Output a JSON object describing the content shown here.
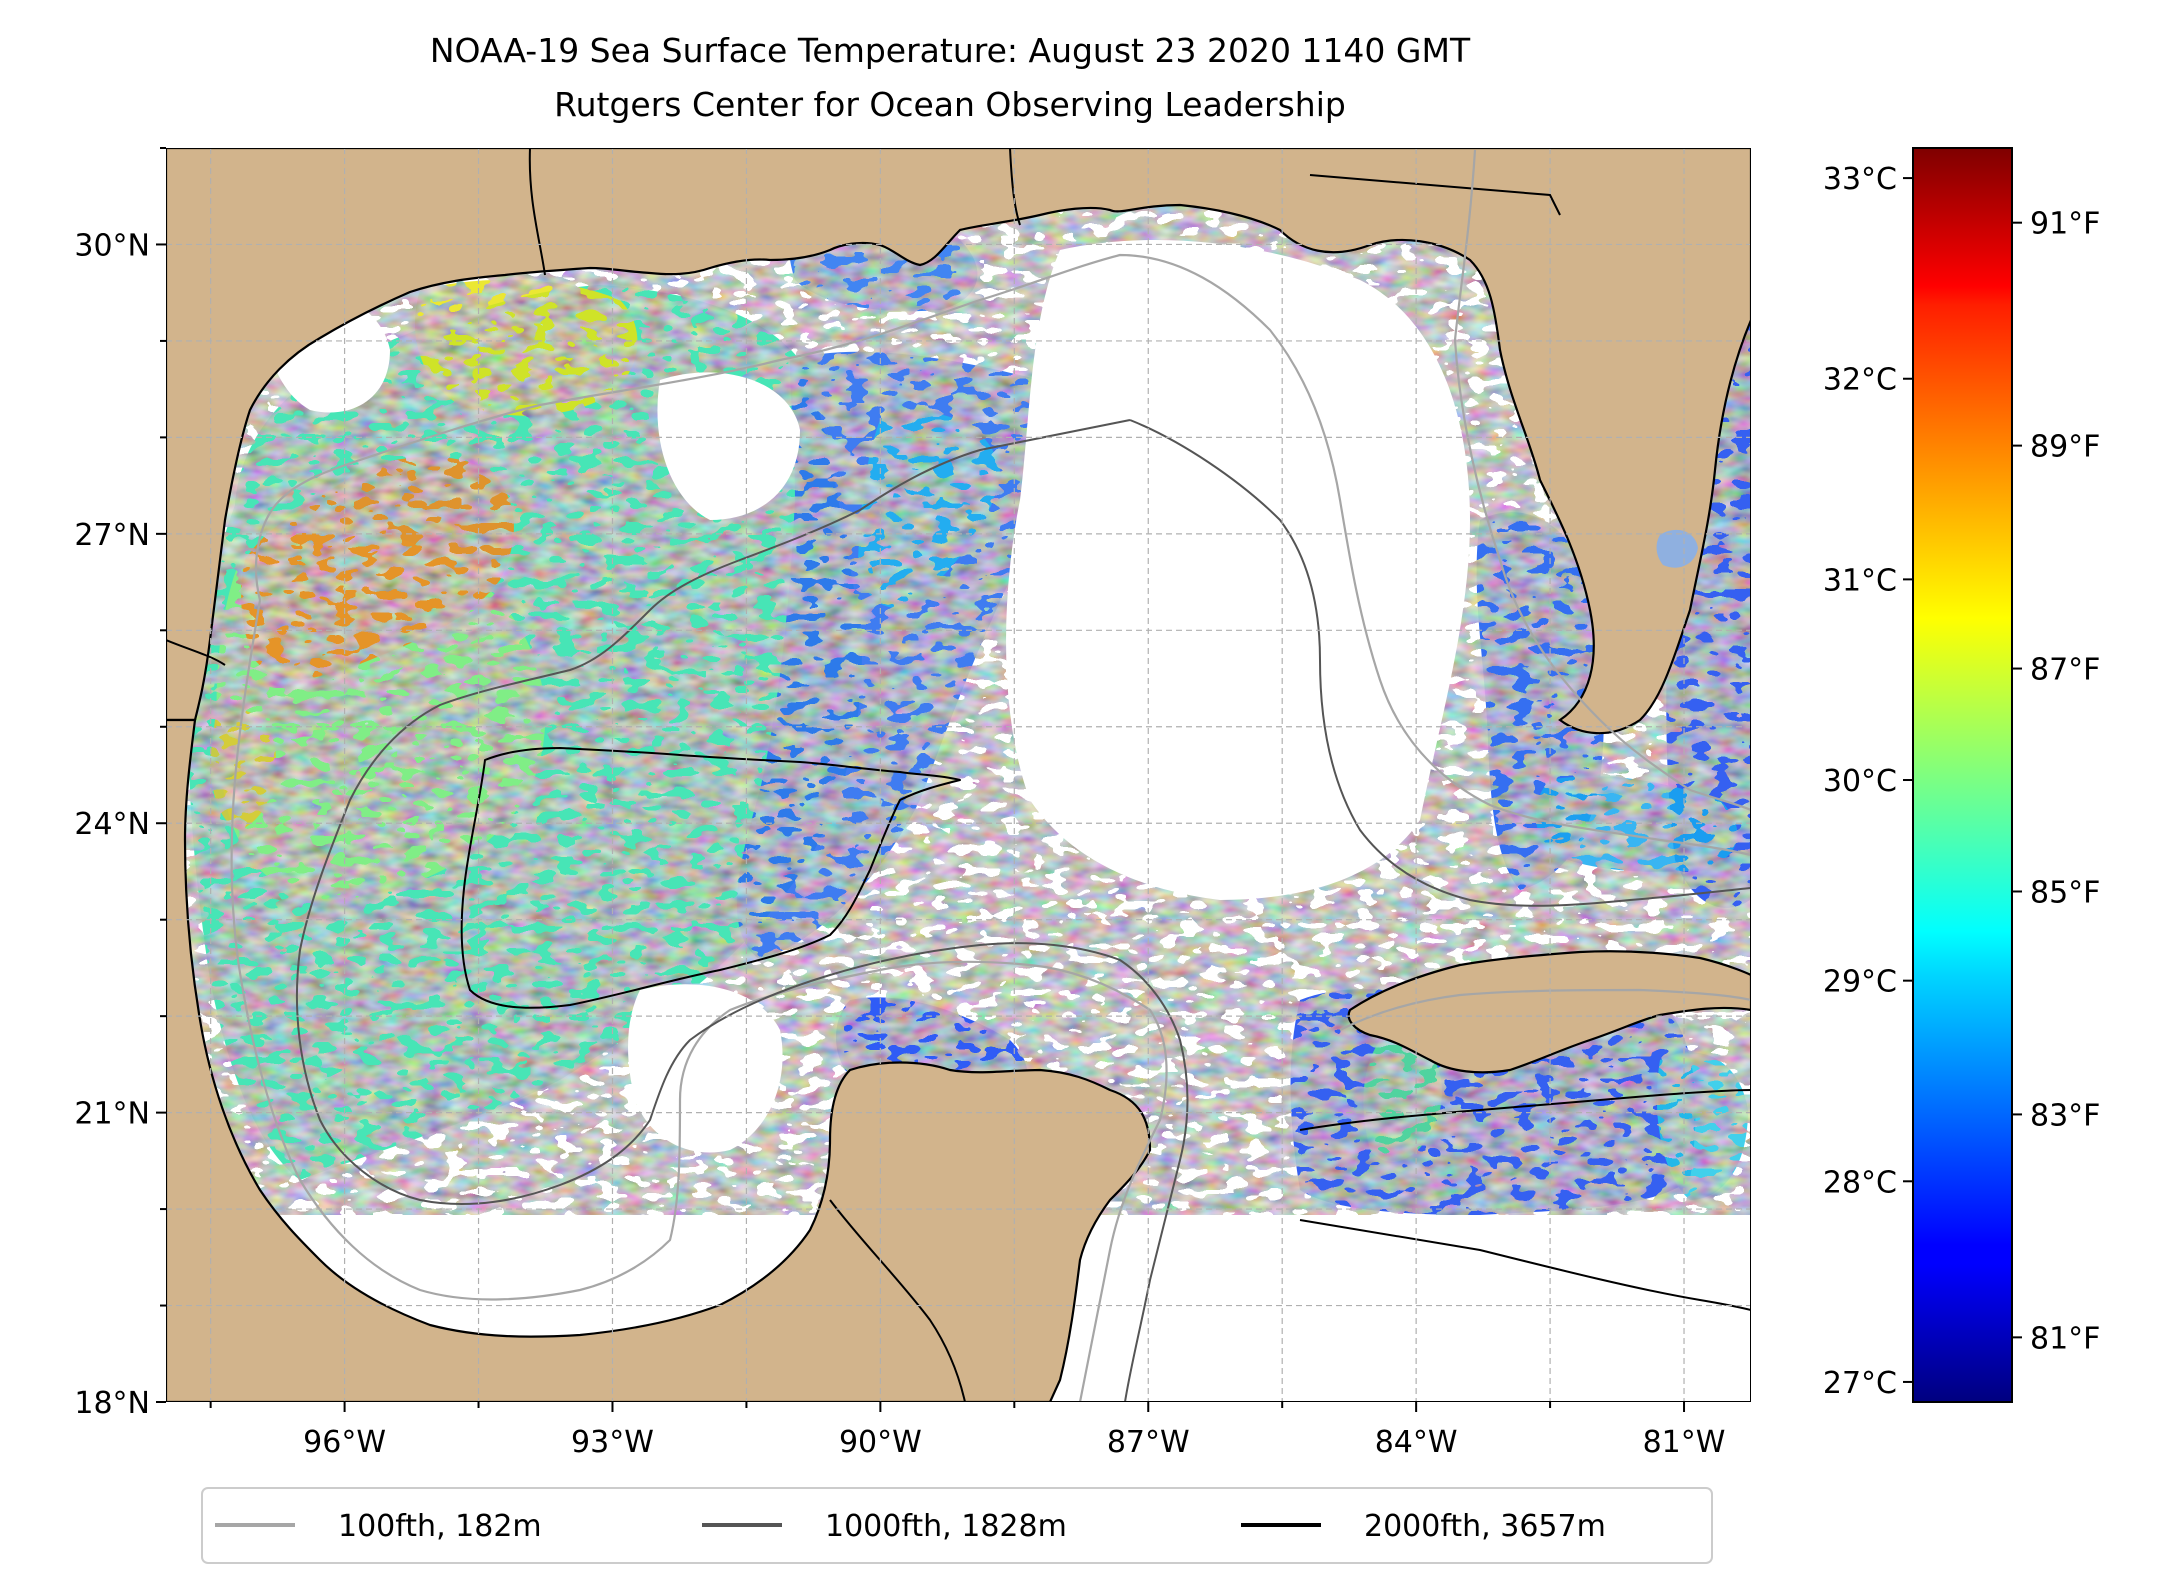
{
  "title": {
    "line1": "NOAA-19 Sea Surface Temperature: August 23 2020 1140 GMT",
    "line2": "Rutgers Center for Ocean Observing Leadership"
  },
  "map": {
    "lon_range": [
      -98.0,
      -80.25
    ],
    "lat_range": [
      18.0,
      31.0
    ],
    "lat_ticks": [
      {
        "value": 18,
        "label": "18°N"
      },
      {
        "value": 21,
        "label": "21°N"
      },
      {
        "value": 24,
        "label": "24°N"
      },
      {
        "value": 27,
        "label": "27°N"
      },
      {
        "value": 30,
        "label": "30°N"
      }
    ],
    "lon_ticks": [
      {
        "value": -96,
        "label": "96°W"
      },
      {
        "value": -93,
        "label": "93°W"
      },
      {
        "value": -90,
        "label": "90°W"
      },
      {
        "value": -87,
        "label": "87°W"
      },
      {
        "value": -84,
        "label": "84°W"
      },
      {
        "value": -81,
        "label": "81°W"
      }
    ],
    "colors": {
      "land": "#d2b48c",
      "coast": "#000000",
      "grid": "#b0b0b0",
      "missing_data": "#ffffff",
      "lake": "#8fb0e0"
    }
  },
  "colorbar": {
    "colormap": "jet",
    "celsius_range": [
      26.9,
      33.15
    ],
    "celsius_ticks": [
      {
        "value": 27,
        "label": "27°C"
      },
      {
        "value": 28,
        "label": "28°C"
      },
      {
        "value": 29,
        "label": "29°C"
      },
      {
        "value": 30,
        "label": "30°C"
      },
      {
        "value": 31,
        "label": "31°C"
      },
      {
        "value": 32,
        "label": "32°C"
      },
      {
        "value": 33,
        "label": "33°C"
      }
    ],
    "fahrenheit_ticks": [
      {
        "value": 81,
        "label": "81°F"
      },
      {
        "value": 83,
        "label": "83°F"
      },
      {
        "value": 85,
        "label": "85°F"
      },
      {
        "value": 87,
        "label": "87°F"
      },
      {
        "value": 89,
        "label": "89°F"
      },
      {
        "value": 91,
        "label": "91°F"
      }
    ]
  },
  "legend": {
    "items": [
      {
        "label": "100fth, 182m",
        "color": "#a6a6a6"
      },
      {
        "label": "1000fth, 1828m",
        "color": "#555555"
      },
      {
        "label": "2000fth, 3657m",
        "color": "#000000"
      }
    ]
  }
}
